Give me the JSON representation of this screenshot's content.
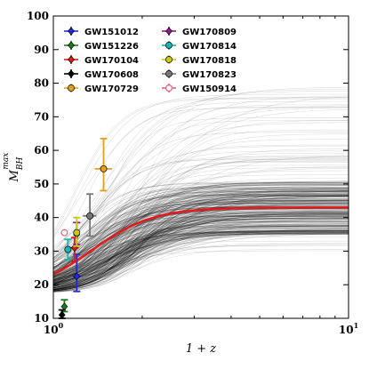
{
  "chart_data": {
    "type": "scatter",
    "xlabel": "1 + z",
    "ylabel_main": "M",
    "ylabel_sub": "BH",
    "ylabel_sup": "max",
    "x_scale": "log",
    "xlim": [
      1,
      10
    ],
    "ylim": [
      10,
      100
    ],
    "x_ticks": [
      {
        "value": 1,
        "base": "10",
        "exp": "0"
      },
      {
        "value": 10,
        "base": "10",
        "exp": "1"
      }
    ],
    "y_ticks": [
      10,
      20,
      30,
      40,
      50,
      60,
      70,
      80,
      90,
      100
    ],
    "legend": {
      "placement": "top-left",
      "columns": 2
    },
    "red_curve": {
      "color": "#e41a1c",
      "y_low": 17.5,
      "y_high": 43,
      "z_mid": 1.35,
      "k": 1.9
    },
    "curve_band": {
      "color": "#000000",
      "count": 300,
      "y_low": 17.5,
      "plateau_range": [
        30,
        79
      ]
    },
    "series": [
      {
        "name": "GW151012",
        "color": "#1f2bd6",
        "marker": "diamond",
        "x": 1.2,
        "y": 22.5,
        "yerr": [
          4.5,
          6.5
        ],
        "xerr": [
          0.04,
          0.04
        ]
      },
      {
        "name": "GW151226",
        "color": "#1a7a1a",
        "marker": "diamond",
        "x": 1.09,
        "y": 13.5,
        "yerr": [
          1.5,
          2.0
        ],
        "xerr": [
          0.015,
          0.015
        ]
      },
      {
        "name": "GW170104",
        "color": "#d81b1b",
        "marker": "diamond",
        "x": 1.18,
        "y": 31.0,
        "yerr": [
          4.0,
          3.0
        ],
        "xerr": [
          0.04,
          0.04
        ]
      },
      {
        "name": "GW170608",
        "color": "#000000",
        "marker": "diamond",
        "x": 1.07,
        "y": 11.0,
        "yerr": [
          1.0,
          1.5
        ],
        "xerr": [
          0.01,
          0.01
        ]
      },
      {
        "name": "GW170729",
        "color": "#e3a21a",
        "marker": "circle",
        "x": 1.48,
        "y": 54.5,
        "yerr": [
          6.5,
          9.0
        ],
        "xerr": [
          0.1,
          0.1
        ]
      },
      {
        "name": "GW170809",
        "color": "#8b1a8b",
        "marker": "diamond",
        "x": 1.2,
        "y": 35.0,
        "yerr": [
          3.0,
          3.5
        ],
        "xerr": [
          0.03,
          0.03
        ]
      },
      {
        "name": "GW170814",
        "color": "#1ab3b3",
        "marker": "circle",
        "x": 1.12,
        "y": 30.5,
        "yerr": [
          3.0,
          3.0
        ],
        "xerr": [
          0.02,
          0.02
        ]
      },
      {
        "name": "GW170818",
        "color": "#c8c81a",
        "marker": "circle",
        "x": 1.2,
        "y": 35.5,
        "yerr": [
          4.0,
          4.5
        ],
        "xerr": [
          0.03,
          0.03
        ]
      },
      {
        "name": "GW170823",
        "color": "#777777",
        "marker": "circle",
        "x": 1.33,
        "y": 40.5,
        "yerr": [
          6.0,
          6.5
        ],
        "xerr": [
          0.07,
          0.07
        ]
      },
      {
        "name": "GW150914",
        "color": "#e8607a",
        "marker": "open-circle",
        "x": 1.09,
        "y": 35.5,
        "yerr": [
          0,
          0
        ],
        "xerr": [
          0,
          0
        ]
      }
    ]
  }
}
